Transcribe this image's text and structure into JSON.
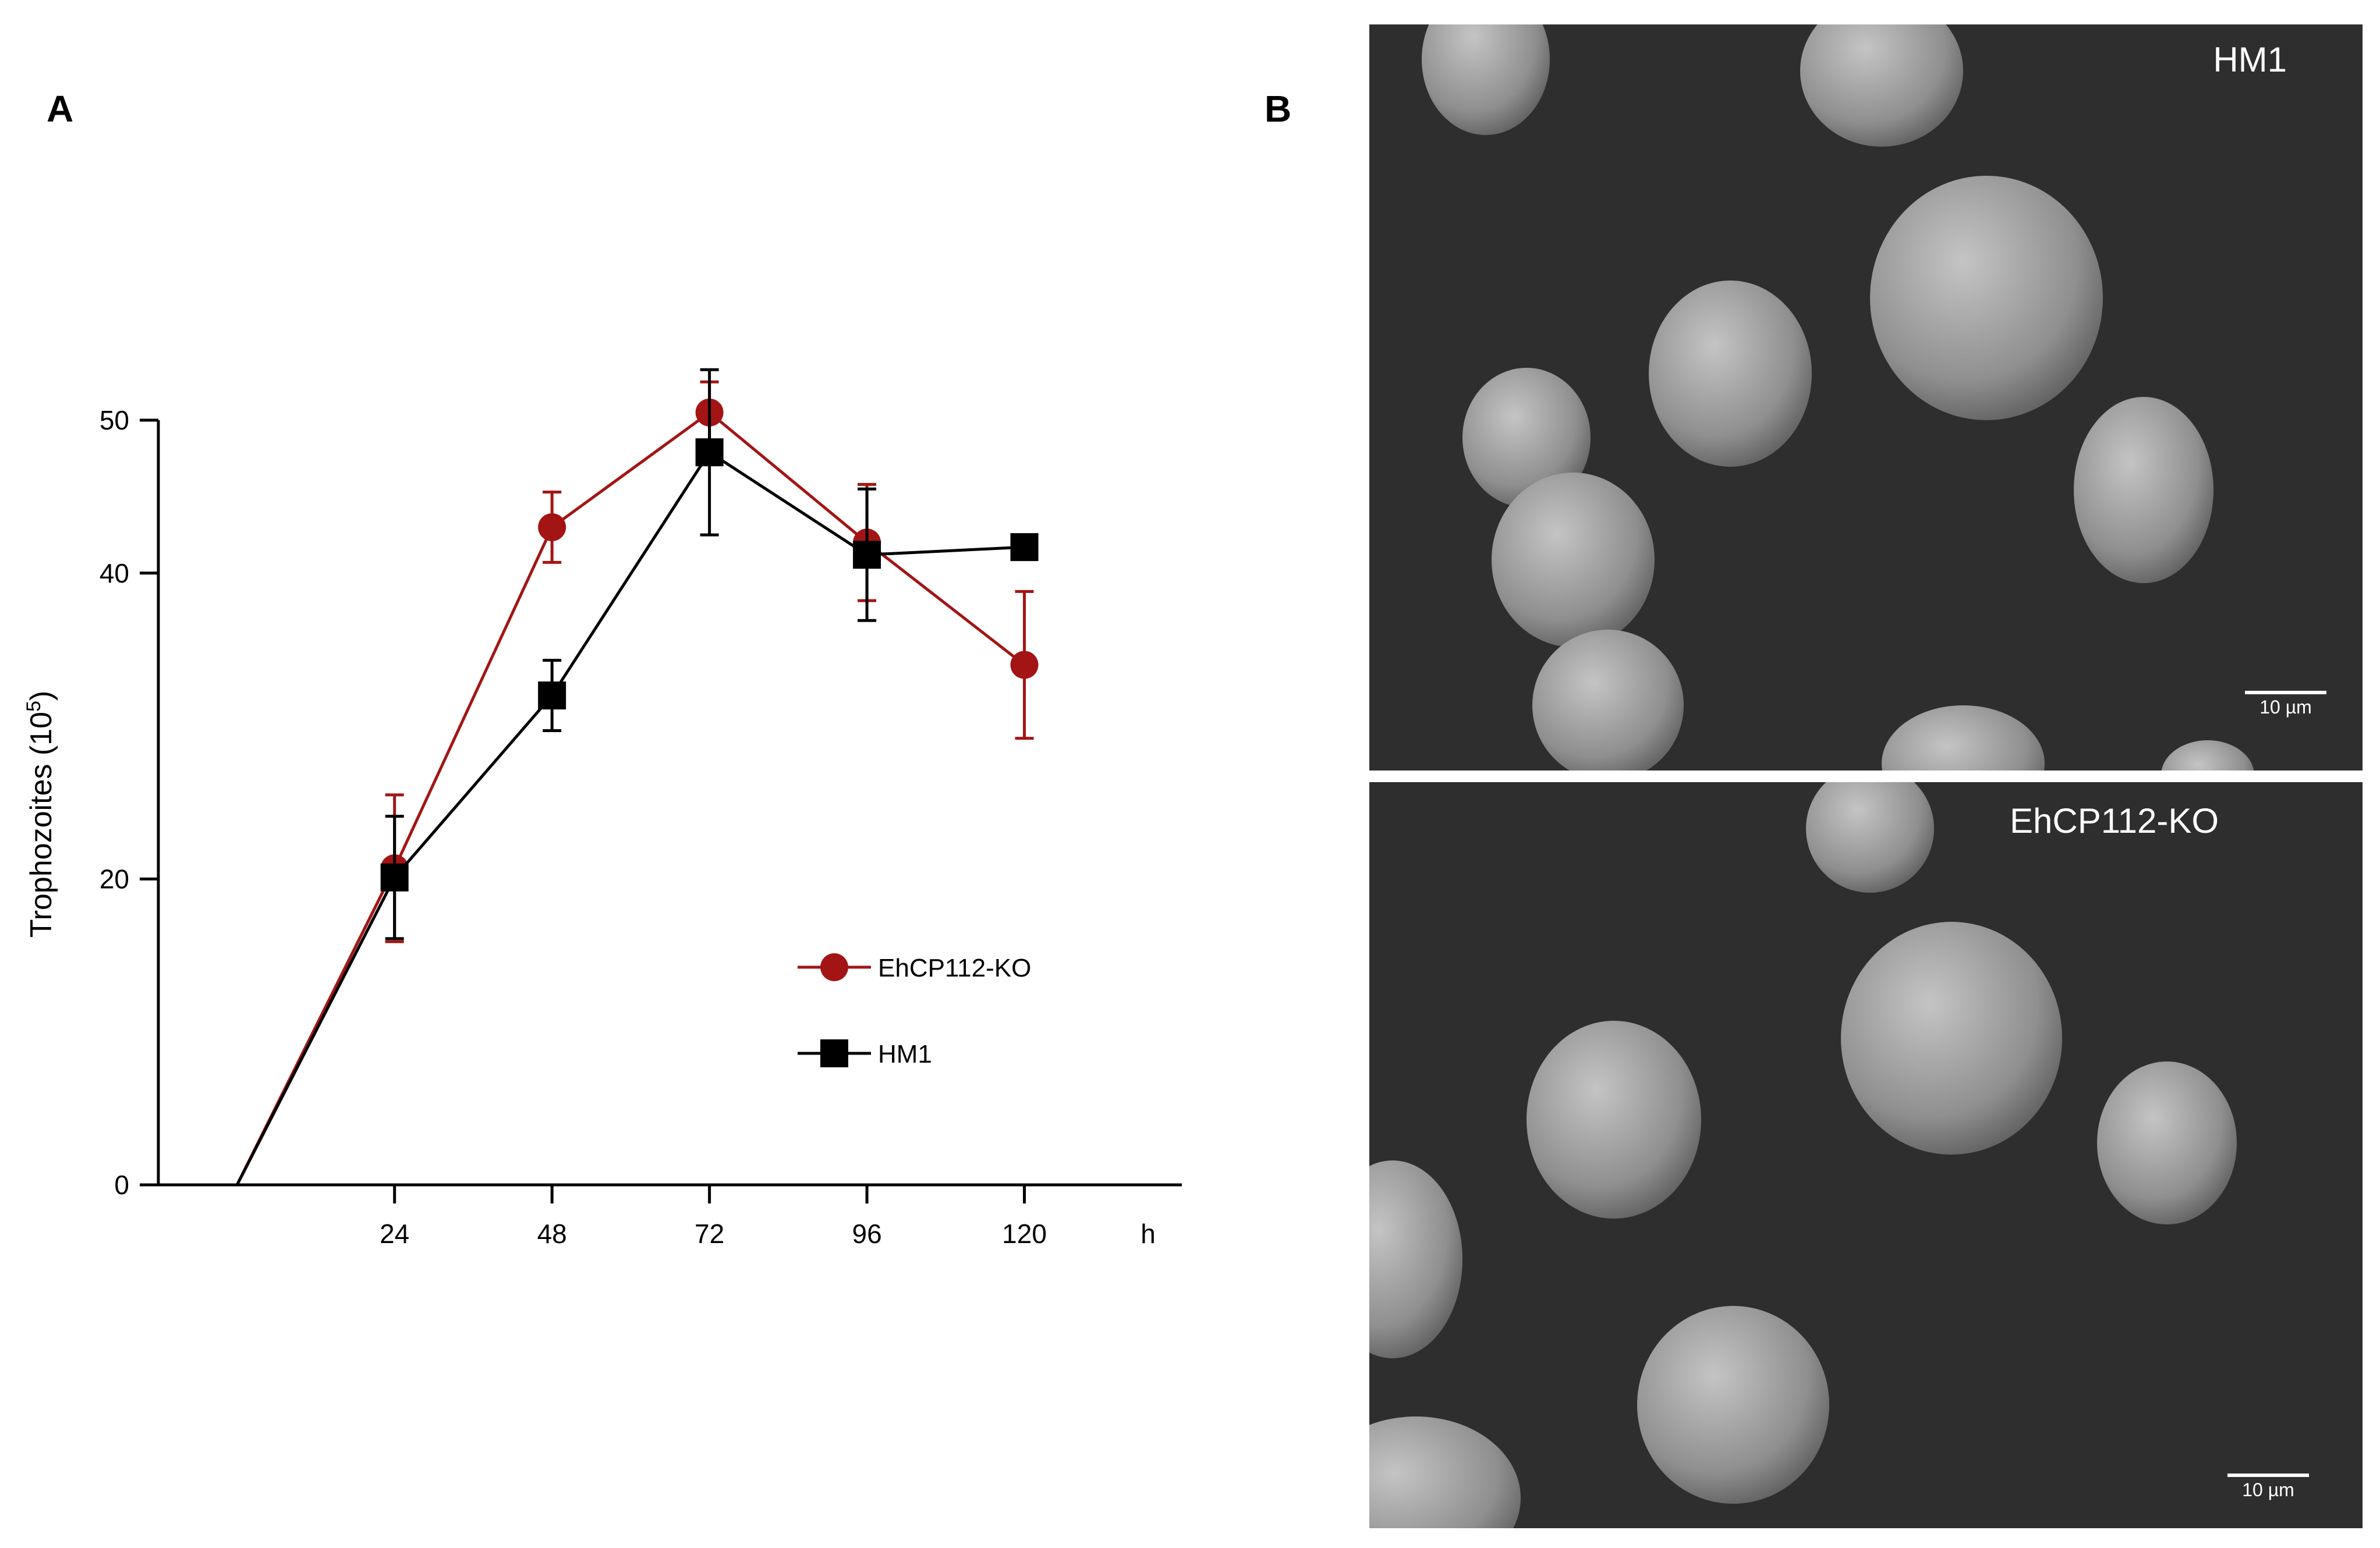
{
  "panel_a_label": "A",
  "panel_b_label": "B",
  "chart_data": {
    "type": "line",
    "title": "",
    "xlabel": "",
    "x_unit_label": "h",
    "ylabel_main": "Trophozoites (10",
    "ylabel_sup": "5",
    "ylabel_close": ")",
    "x": [
      0,
      24,
      48,
      72,
      96,
      120
    ],
    "x_ticks": [
      24,
      48,
      72,
      96,
      120
    ],
    "x_tick_labels": [
      "24",
      "48",
      "72",
      "96",
      "120"
    ],
    "xlim": [
      -12,
      144
    ],
    "y_ticks": [
      0,
      20,
      40,
      50
    ],
    "y_tick_labels": [
      "0",
      "20",
      "40",
      "50"
    ],
    "ylim": [
      0,
      50
    ],
    "grid": false,
    "legend_position": "lower-right",
    "series": [
      {
        "name": "EhCP112-KO",
        "color": "#a31515",
        "marker": "circle",
        "values": [
          0,
          20.7,
          43.0,
          50.5,
          42.0,
          34.0
        ],
        "error": [
          0,
          4.8,
          2.3,
          2.0,
          3.8,
          4.8
        ]
      },
      {
        "name": "HM1",
        "color": "#000000",
        "marker": "square",
        "values": [
          0,
          20.1,
          32.0,
          47.9,
          41.2,
          41.7
        ],
        "error": [
          0,
          4.0,
          2.3,
          5.4,
          4.3,
          0
        ]
      }
    ]
  },
  "micrographs": {
    "top": {
      "label": "HM1",
      "scale_label": "10 µm"
    },
    "bottom": {
      "label": "EhCP112-KO",
      "scale_label": "10 µm"
    }
  },
  "colors": {
    "ko": "#a31515",
    "hm1": "#000000",
    "micro_background": "#2e2e2e",
    "cell_fill": "#9a9a9a"
  }
}
